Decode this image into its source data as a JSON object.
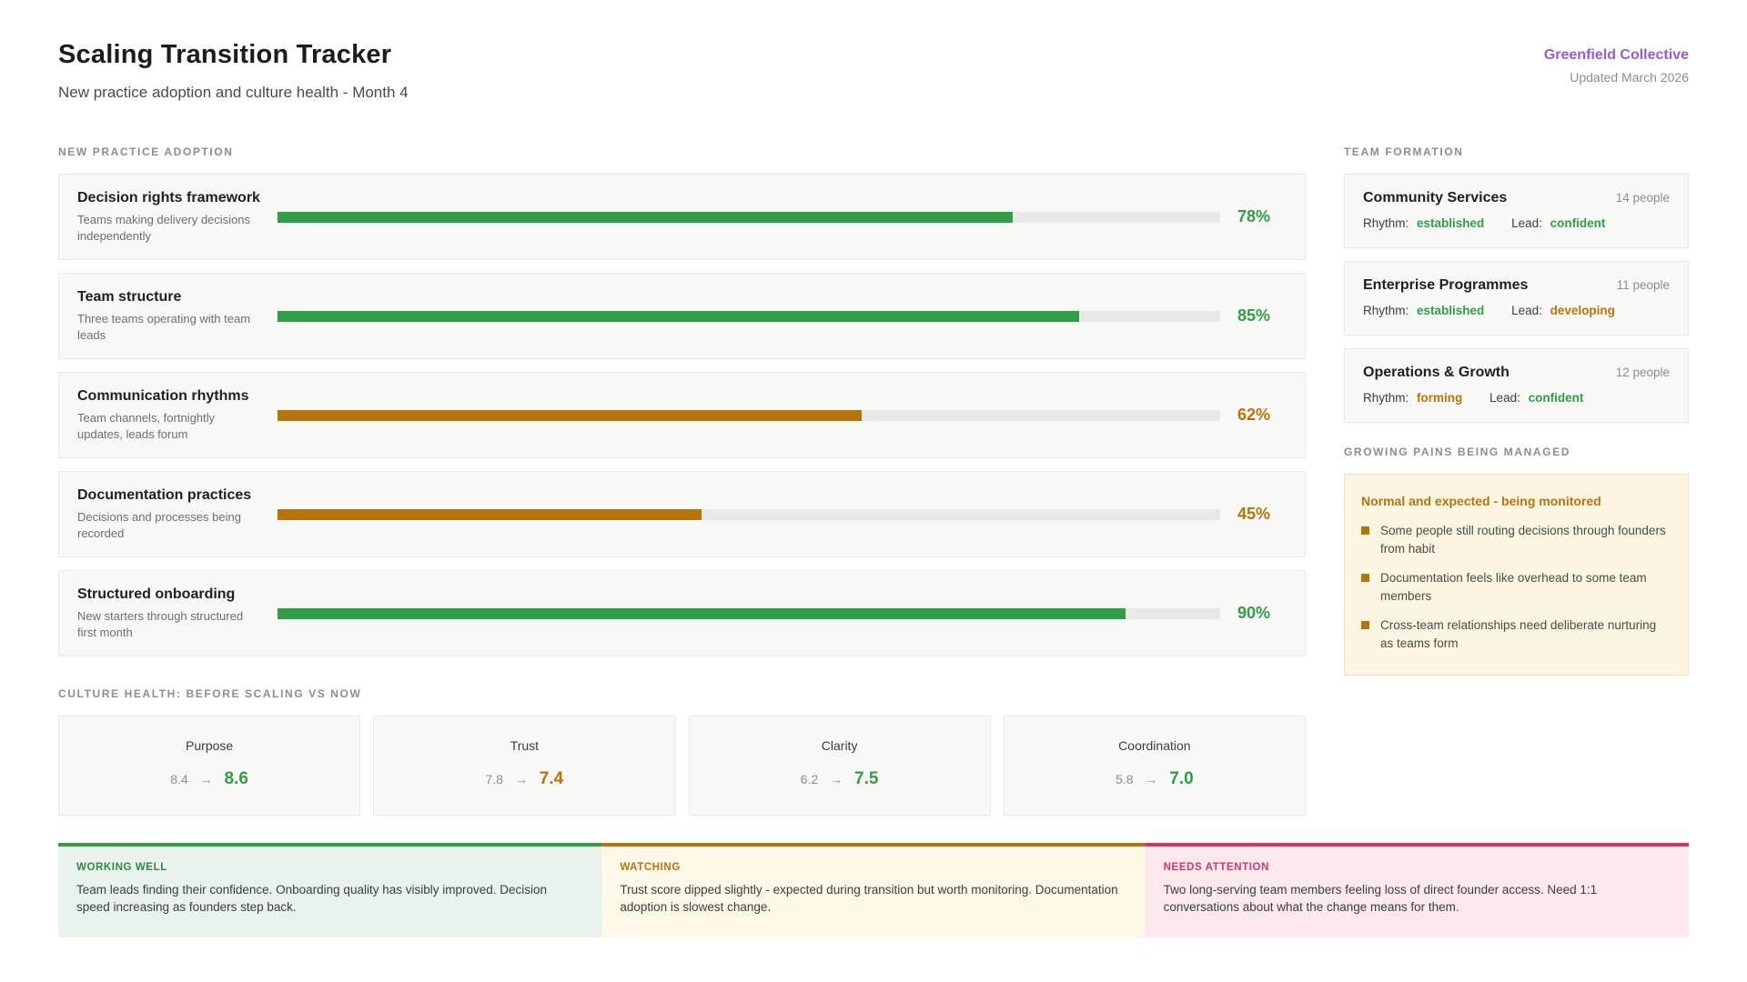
{
  "header": {
    "title": "Scaling Transition Tracker",
    "subtitle": "New practice adoption and culture health - Month 4",
    "org": "Greenfield Collective",
    "updated": "Updated March 2026"
  },
  "colors": {
    "green": "#2f9e44",
    "amber": "#b8730a",
    "pink": "#d6336c",
    "purple": "#9b59d3"
  },
  "adoption": {
    "section_label": "NEW PRACTICE ADOPTION",
    "items": [
      {
        "title": "Decision rights framework",
        "desc": "Teams making delivery decisions independently",
        "pct": 78,
        "pct_label": "78%",
        "status": "green"
      },
      {
        "title": "Team structure",
        "desc": "Three teams operating with team leads",
        "pct": 85,
        "pct_label": "85%",
        "status": "green"
      },
      {
        "title": "Communication rhythms",
        "desc": "Team channels, fortnightly updates, leads forum",
        "pct": 62,
        "pct_label": "62%",
        "status": "amber"
      },
      {
        "title": "Documentation practices",
        "desc": "Decisions and processes being recorded",
        "pct": 45,
        "pct_label": "45%",
        "status": "amber"
      },
      {
        "title": "Structured onboarding",
        "desc": "New starters through structured first month",
        "pct": 90,
        "pct_label": "90%",
        "status": "green"
      }
    ]
  },
  "culture": {
    "section_label": "CULTURE HEALTH: BEFORE SCALING VS NOW",
    "arrow": "→",
    "metrics": [
      {
        "label": "Purpose",
        "before": "8.4",
        "now": "8.6",
        "status": "green"
      },
      {
        "label": "Trust",
        "before": "7.8",
        "now": "7.4",
        "status": "amber"
      },
      {
        "label": "Clarity",
        "before": "6.2",
        "now": "7.5",
        "status": "green"
      },
      {
        "label": "Coordination",
        "before": "5.8",
        "now": "7.0",
        "status": "green"
      }
    ]
  },
  "teams": {
    "section_label": "TEAM FORMATION",
    "labels": {
      "rhythm": "Rhythm:",
      "lead": "Lead:"
    },
    "items": [
      {
        "name": "Community Services",
        "size": "14 people",
        "rhythm": "established",
        "rhythm_status": "green",
        "lead": "confident",
        "lead_status": "green"
      },
      {
        "name": "Enterprise Programmes",
        "size": "11 people",
        "rhythm": "established",
        "rhythm_status": "green",
        "lead": "developing",
        "lead_status": "amber"
      },
      {
        "name": "Operations & Growth",
        "size": "12 people",
        "rhythm": "forming",
        "rhythm_status": "amber",
        "lead": "confident",
        "lead_status": "green"
      }
    ]
  },
  "growing_pains": {
    "section_label": "GROWING PAINS BEING MANAGED",
    "heading": "Normal and expected - being monitored",
    "items": [
      "Some people still routing decisions through founders from habit",
      "Documentation feels like overhead to some team members",
      "Cross-team relationships need deliberate nurturing as teams form"
    ]
  },
  "footer": {
    "panels": [
      {
        "label": "WORKING WELL",
        "status": "green",
        "text": "Team leads finding their confidence. Onboarding quality has visibly improved. Decision speed increasing as founders step back."
      },
      {
        "label": "WATCHING",
        "status": "amber",
        "text": "Trust score dipped slightly - expected during transition but worth monitoring. Documentation adoption is slowest change."
      },
      {
        "label": "NEEDS ATTENTION",
        "status": "pink",
        "text": "Two long-serving team members feeling loss of direct founder access. Need 1:1 conversations about what the change means for them."
      }
    ]
  }
}
